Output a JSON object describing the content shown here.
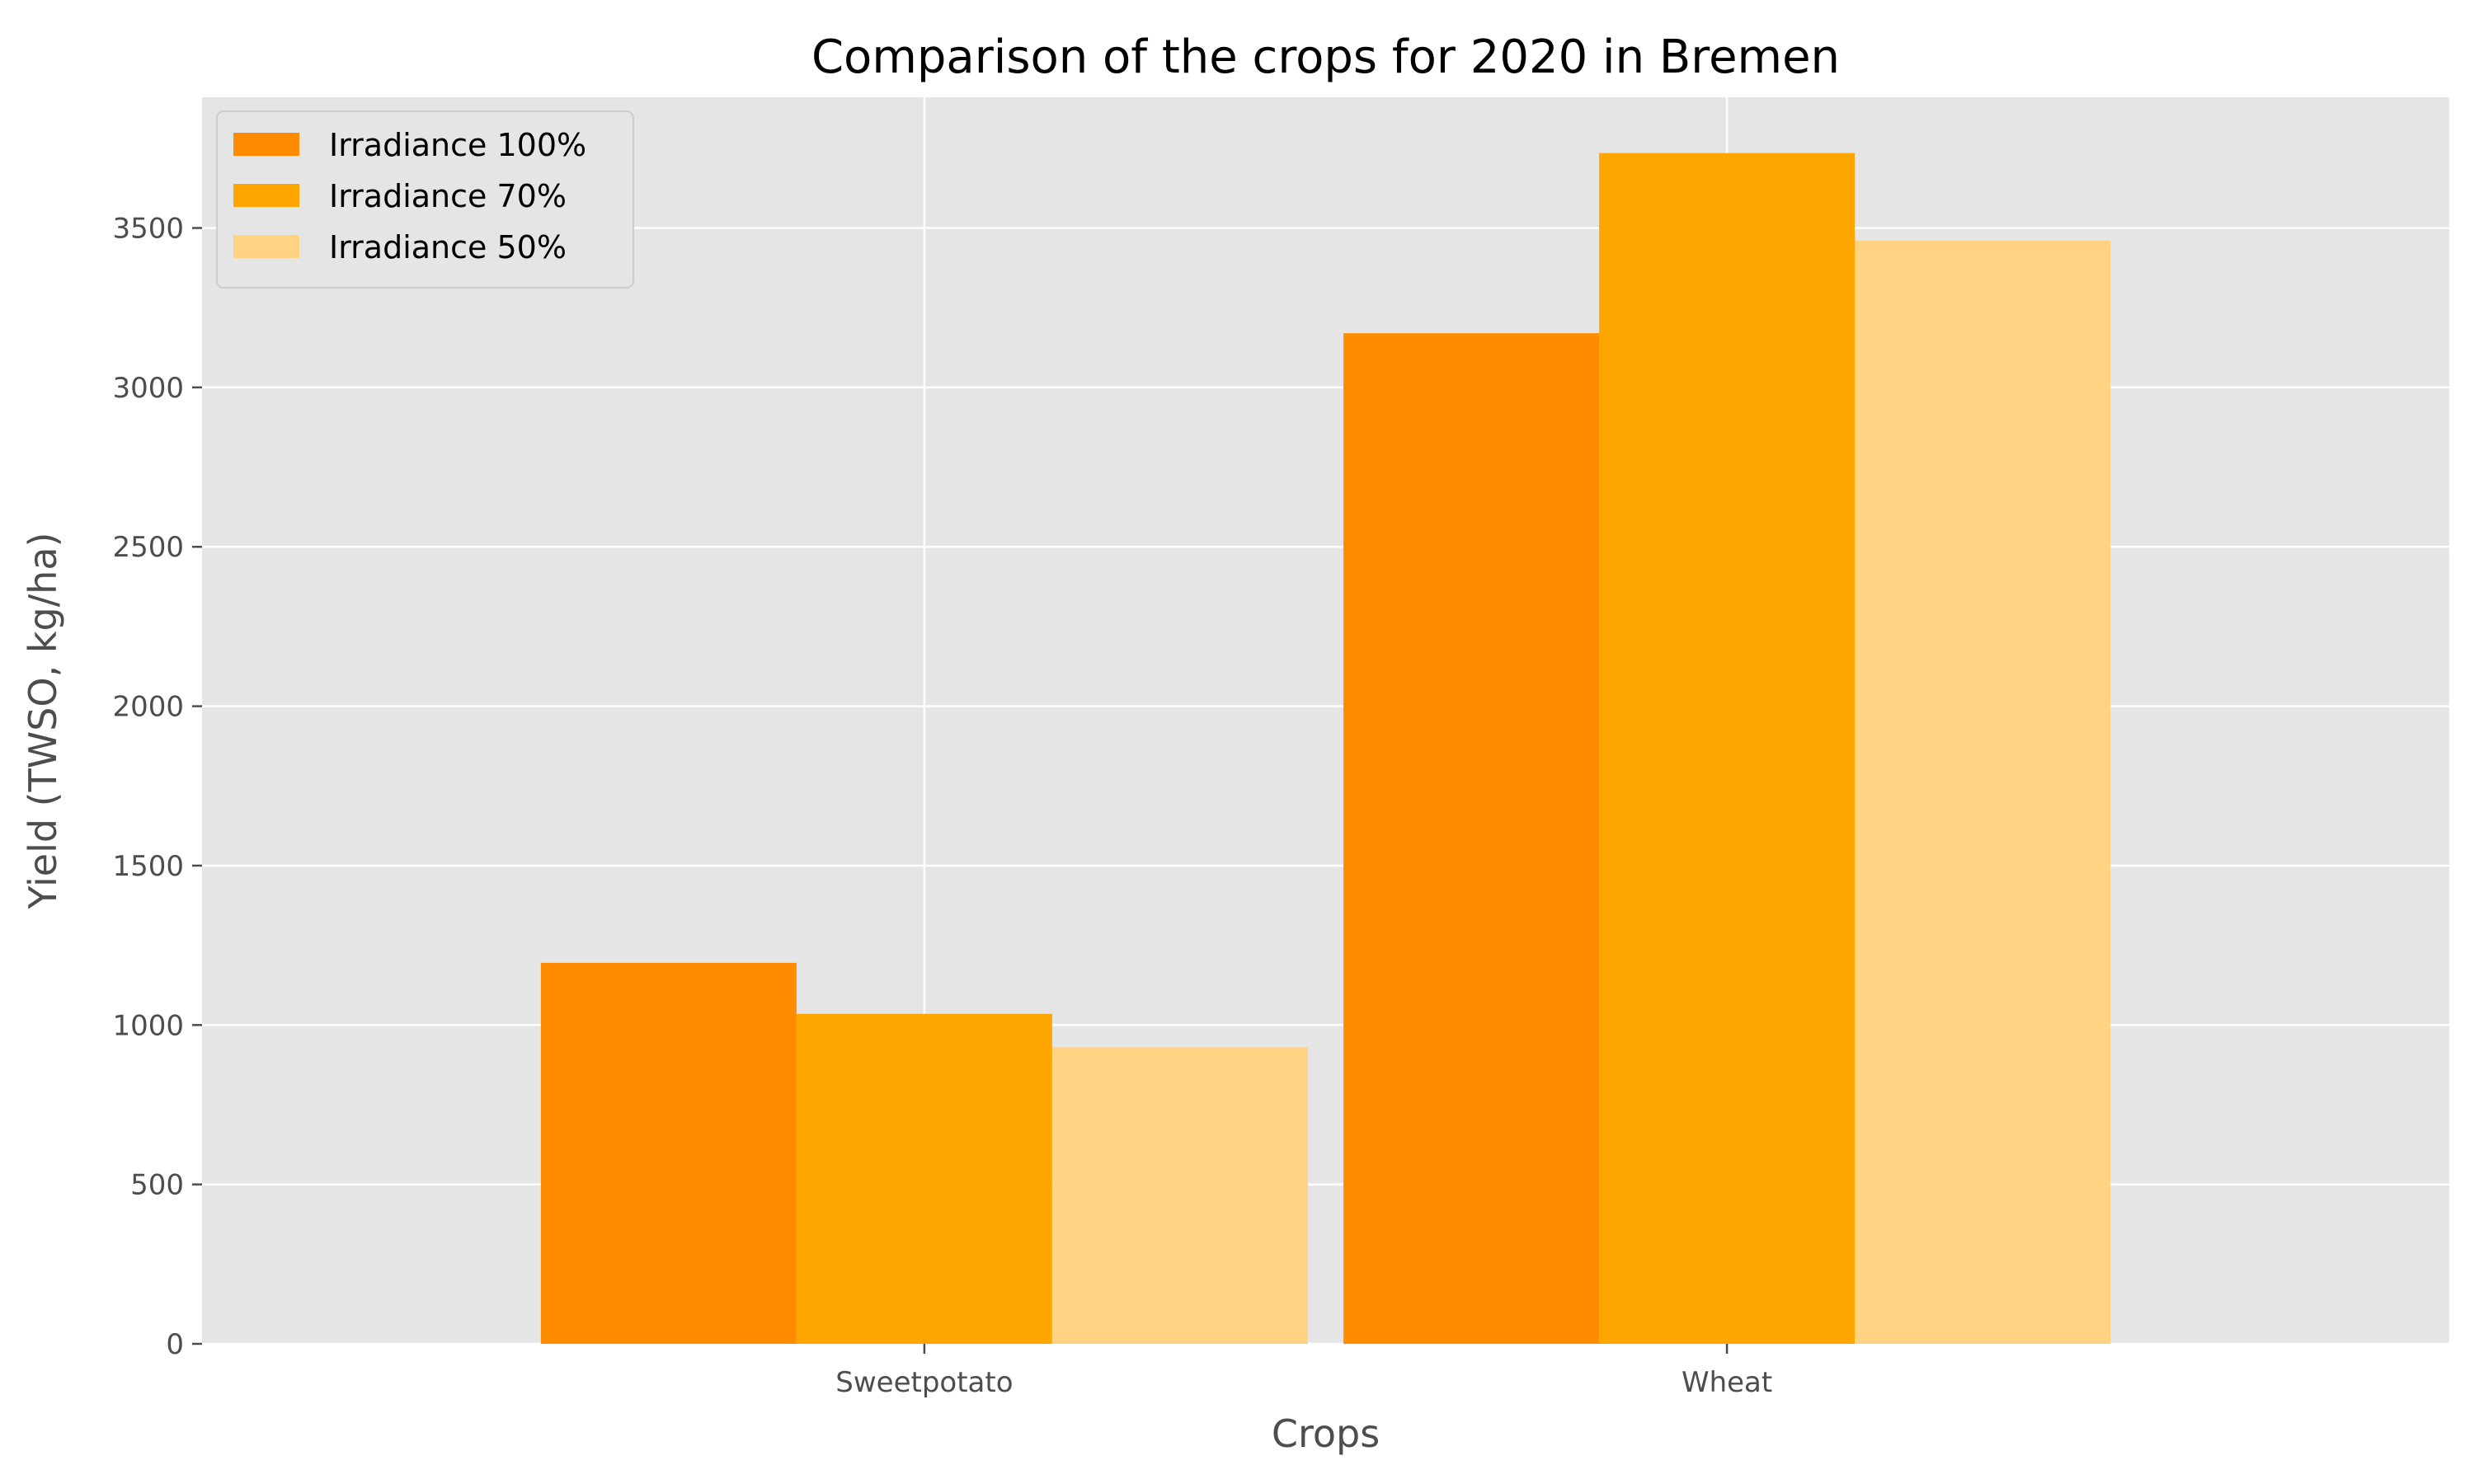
{
  "chart_data": {
    "type": "bar",
    "title": "Comparison of the crops for 2020 in Bremen",
    "xlabel": "Crops",
    "ylabel": "Yield (TWSO, kg/ha)",
    "categories": [
      "Sweetpotato",
      "Wheat"
    ],
    "series": [
      {
        "name": "Irradiance 100%",
        "color": "#ff8c00",
        "values": [
          1195,
          3170
        ]
      },
      {
        "name": "Irradiance 70%",
        "color": "#ffa500",
        "values": [
          1035,
          3735
        ]
      },
      {
        "name": "Irradiance 50%",
        "color": "#ffd382",
        "values": [
          930,
          3460
        ]
      }
    ],
    "ylim": [
      0,
      3910
    ],
    "yticks": [
      0,
      500,
      1000,
      1500,
      2000,
      2500,
      3000,
      3500
    ],
    "grid": true,
    "legend_position": "upper left",
    "background_color": "#e5e5e5",
    "grid_color": "#ffffff"
  }
}
